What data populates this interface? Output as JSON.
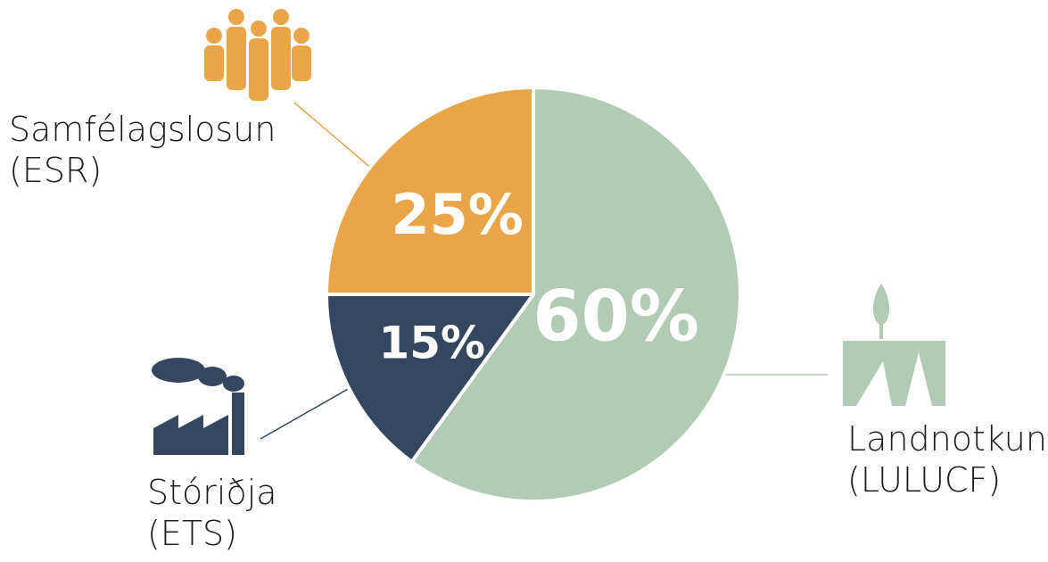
{
  "chart_data": {
    "type": "pie",
    "categories": [
      "Landnotkun",
      "Stóriðja",
      "Samfélagslosun"
    ],
    "codes": [
      "(LULUCF)",
      "(ETS)",
      "(ESR)"
    ],
    "values": [
      60,
      15,
      25
    ],
    "value_labels": [
      "60%",
      "15%",
      "25%"
    ],
    "colors": [
      "#b1cbb4",
      "#34475f",
      "#e9a548"
    ]
  }
}
